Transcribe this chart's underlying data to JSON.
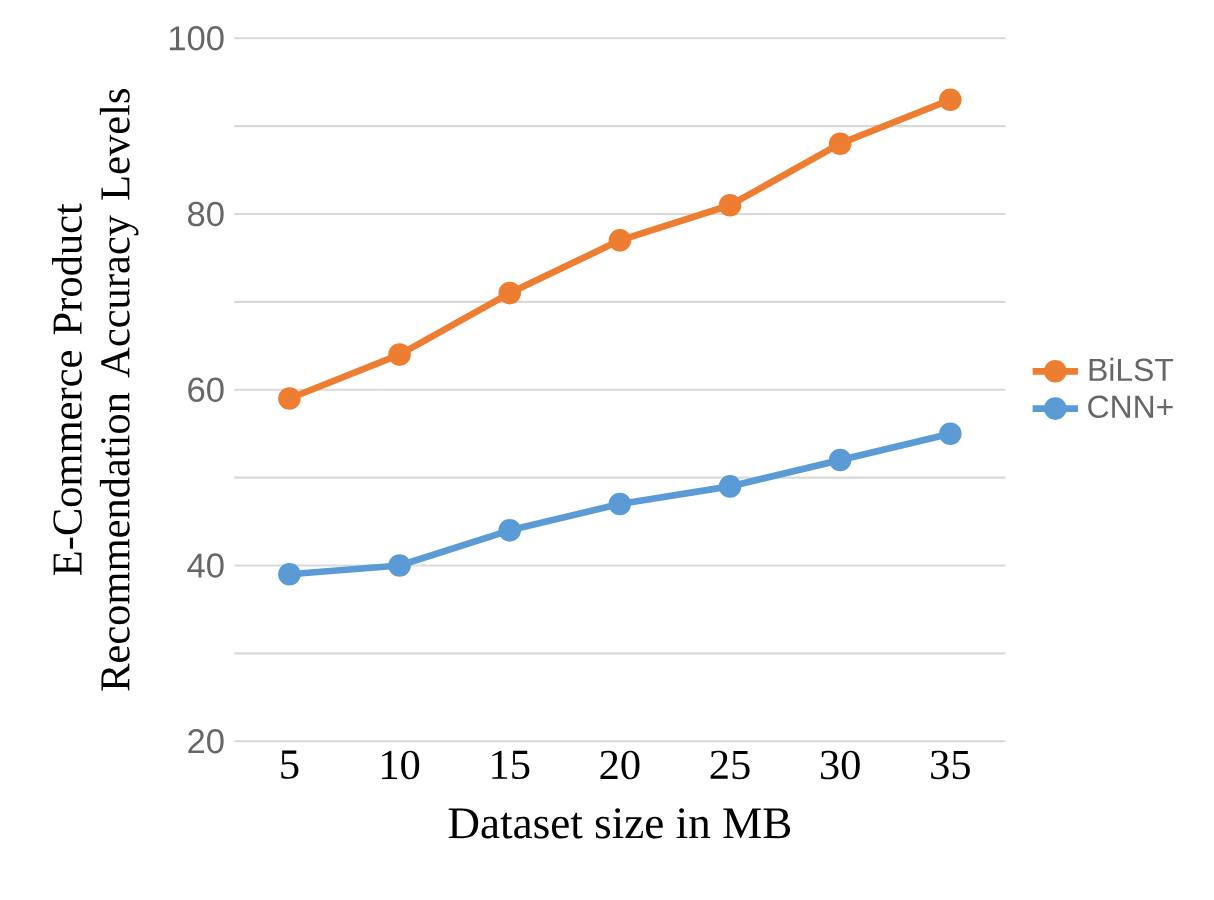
{
  "chart_data": {
    "type": "line",
    "xlabel": "Dataset size in MB",
    "ylabel": "E-Commerce Product Recommendation Accuracy Levels",
    "categories": [
      "5",
      "10",
      "15",
      "20",
      "25",
      "30",
      "35"
    ],
    "series": [
      {
        "name": "BiLST",
        "color": "#ed7d31",
        "values": [
          59,
          64,
          71,
          77,
          81,
          88,
          93
        ]
      },
      {
        "name": "CNN+",
        "color": "#5b9bd5",
        "values": [
          39,
          40,
          44,
          47,
          49,
          52,
          55
        ]
      }
    ],
    "ylim": [
      20,
      100
    ],
    "yticks": [
      20,
      {
        "value": 30,
        "label": null
      },
      40,
      {
        "value": 50,
        "label": null
      },
      60,
      {
        "value": 70,
        "label": null
      },
      80,
      {
        "value": 90,
        "label": null
      },
      100
    ],
    "grid": "y",
    "legend": "right",
    "marker": "circle",
    "line_style": "solid"
  }
}
